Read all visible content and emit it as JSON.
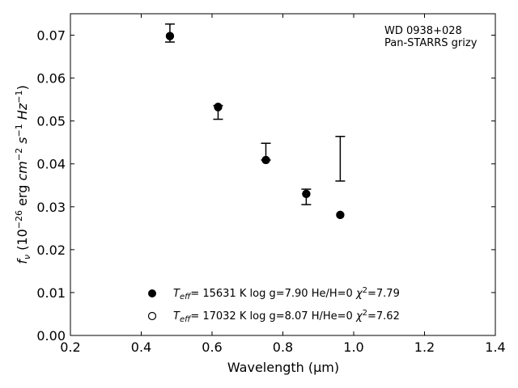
{
  "chart_data": {
    "type": "scatter",
    "xlabel": "Wavelength (μm)",
    "ylabel": "f_ν (10^-26 erg cm^-2 s^-1 Hz^-1)",
    "xlim": [
      0.2,
      1.4
    ],
    "ylim": [
      0.0,
      0.075
    ],
    "xticks": [
      0.2,
      0.4,
      0.6,
      0.8,
      1.0,
      1.2,
      1.4
    ],
    "xtick_labels": [
      "0.2",
      "0.4",
      "0.6",
      "0.8",
      "1.0",
      "1.2",
      "1.4"
    ],
    "yticks": [
      0.0,
      0.01,
      0.02,
      0.03,
      0.04,
      0.05,
      0.06,
      0.07
    ],
    "ytick_labels": [
      "0.00",
      "0.01",
      "0.02",
      "0.03",
      "0.04",
      "0.05",
      "0.06",
      "0.07"
    ],
    "grid": false,
    "annotation": [
      "WD 0938+028",
      "Pan-STARRS grizy"
    ],
    "observed": {
      "x": [
        0.481,
        0.617,
        0.752,
        0.866,
        0.962
      ],
      "y": [
        0.0707,
        0.052,
        0.0416,
        0.0323,
        0.0412
      ],
      "yerr_low": [
        0.0023,
        0.0016,
        0.0007,
        0.0018,
        0.0052
      ],
      "yerr_high": [
        0.0019,
        0.0016,
        0.0032,
        0.0018,
        0.0052
      ]
    },
    "series": [
      {
        "marker": "filled-circle",
        "legend": {
          "teff_value": "= 15631 K",
          "logg": "log g=7.90",
          "comp": "He/H=0",
          "chi2_value": "=7.79"
        },
        "x": [
          0.481,
          0.617,
          0.752,
          0.866,
          0.962
        ],
        "y": [
          0.0698,
          0.0533,
          0.0409,
          0.033,
          0.0281
        ]
      },
      {
        "marker": "open-circle",
        "legend": {
          "teff_value": "= 17032 K",
          "logg": "log g=8.07",
          "comp": "H/He=0",
          "chi2_value": "=7.62"
        },
        "x": [
          0.481,
          0.617,
          0.752,
          0.866,
          0.962
        ],
        "y": [
          0.0698,
          0.0532,
          0.0409,
          0.033,
          0.0281
        ]
      }
    ],
    "legend_placement": "lower-center"
  }
}
